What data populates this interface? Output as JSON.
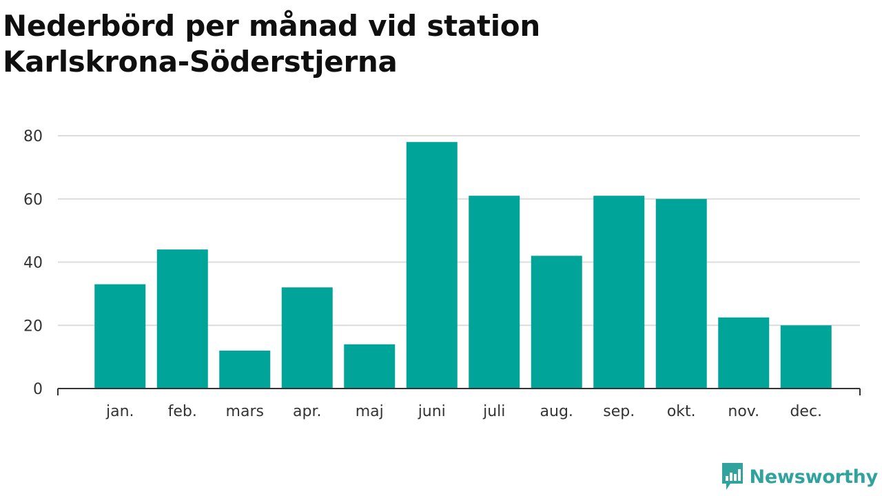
{
  "header": {
    "title": "Nederbörd per månad vid station Karlskrona-Söderstjerna"
  },
  "brand": {
    "name": "Newsworthy",
    "icon": "newsworthy-logo-icon",
    "color": "#2fa39c"
  },
  "colors": {
    "bar": "#00a499",
    "grid": "#dcdcdc",
    "axis": "#333333"
  },
  "chart_data": {
    "type": "bar",
    "title": "Nederbörd per månad vid station Karlskrona-Söderstjerna",
    "xlabel": "",
    "ylabel": "",
    "categories": [
      "jan.",
      "feb.",
      "mars",
      "apr.",
      "maj",
      "juni",
      "juli",
      "aug.",
      "sep.",
      "okt.",
      "nov.",
      "dec."
    ],
    "values": [
      33,
      44,
      12,
      32,
      14,
      78,
      61,
      42,
      61,
      60,
      22.5,
      20
    ],
    "ylim": [
      0,
      80
    ],
    "yticks": [
      0,
      20,
      40,
      60,
      80
    ],
    "grid": true,
    "legend": "none"
  }
}
